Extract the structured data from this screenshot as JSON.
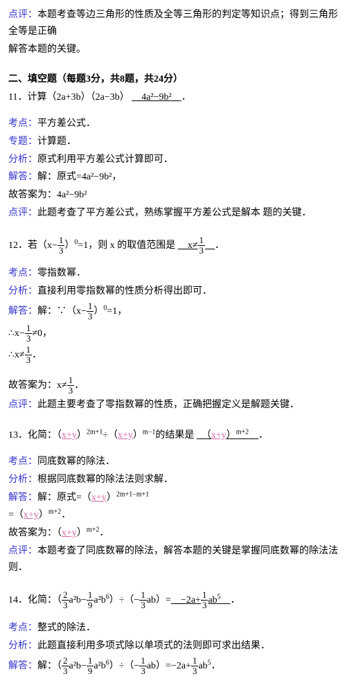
{
  "intro": {
    "dpLabel": "点评：",
    "dpText1": "本题考查等边三角形的性质及全等三角形的判定等知识点；得到三角形全等是正确",
    "dpText2": "解答本题的关键。"
  },
  "sectionTitle": "二、填空题（每题3分，共8题，共24分）",
  "q11": {
    "stem": "11．计算（2a+3b）（2a−3b）",
    "ans": "4a²−9b²",
    "period": "．",
    "kdLabel": "考点：",
    "kd": "平方差公式．",
    "ztLabel": "专题：",
    "zt": "计算题．",
    "fxLabel": "分析：",
    "fx": "原式利用平方差公式计算即可．",
    "jdLabel": "解答：",
    "jd": "解：原式=4a²−9b²，",
    "gu": "故答案为：4a²−9b²",
    "dpLabel": "点评：",
    "dp": "此题考查了平方差公式，熟练掌握平方差公式是解本 题的关键．"
  },
  "q12": {
    "stemA": "12．若（x−",
    "fracNum": "1",
    "fracDen": "3",
    "stemB": "）",
    "exp0": "0",
    "stemC": "=1，则 x 的取值范围是",
    "ansA": "x≠",
    "period": "．",
    "kdLabel": "考点：",
    "kd": "零指数幂．",
    "fxLabel": "分析：",
    "fx": "直接利用零指数幂的性质分析得出即可．",
    "jdLabel": "解答：",
    "jdA": "解：∵（x−",
    "jdB": "）",
    "jdC": "=1，",
    "line2A": "∴x−",
    "line2B": "≠0，",
    "line3A": "∴x≠",
    "line3B": "．",
    "guA": "故答案为：x≠",
    "guB": "．",
    "dpLabel": "点评：",
    "dp": "此题主要考查了零指数幂的性质，正确把握定义是解题关键．"
  },
  "q13": {
    "stemA": "13．化简：（",
    "xy": "x+y",
    "stemB": "）",
    "exp1": "2m+1",
    "stemC": "÷（",
    "stemD": "）",
    "exp2": "m−1",
    "stemE": "的结果是",
    "blankA": "（",
    "blankB": "）",
    "exp3": "m+2",
    "period": "．",
    "kdLabel": "考点：",
    "kd": "同底数幂的除法．",
    "fxLabel": "分析：",
    "fx": "根据同底数幂的除法法则求解．",
    "jdLabel": "解答：",
    "jdA": "解：原式=（",
    "jdB": "）",
    "exp4": "2m+1−m+1",
    "line2A": "=（",
    "line2B": "）",
    "exp5": "m+2",
    "line2C": "．",
    "guA": "故答案为：（",
    "guB": "）",
    "guC": "．",
    "dpLabel": "点评：",
    "dp": "本题考查了同底数幂的除法，解答本题的关键是掌握同底数幂的除法法则．"
  },
  "q14": {
    "stemA": "14．化简：（",
    "f2": "2",
    "f3": "3",
    "f1": "1",
    "f9": "9",
    "t1": "a²b−",
    "t2": "a²b",
    "exp6": "6",
    "stemB": "）÷（−",
    "t3": "ab）=",
    "ansA": "−2a+",
    "t4": "ab",
    "exp5": "5",
    "period": "．",
    "kdLabel": "考点：",
    "kd": "整式的除法．",
    "fxLabel": "分析：",
    "fx": "此题直接利用多项式除以单项式的法则即可求出结果．",
    "jdLabel": "解答：",
    "jdA": "解：（",
    "jdB": "）÷（−",
    "jdC": "ab）=−2a+",
    "jdD": "ab",
    "jdE": "．"
  }
}
